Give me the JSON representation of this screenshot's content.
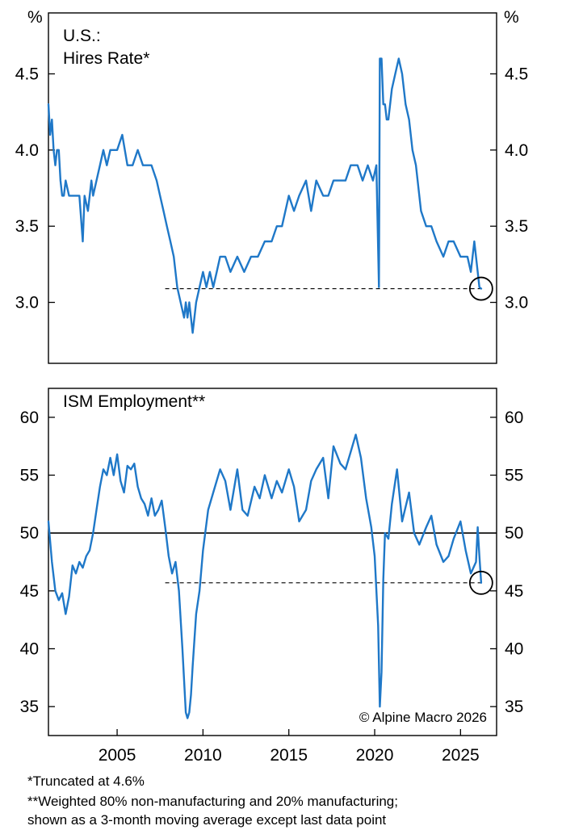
{
  "chart_data": [
    {
      "type": "line",
      "title": "U.S.:",
      "subtitle": "Hires Rate*",
      "unit_label": "%",
      "ylim": [
        2.6,
        4.9
      ],
      "yticks": [
        3.0,
        3.5,
        4.0,
        4.5
      ],
      "ytick_labels": [
        "3.0",
        "3.5",
        "4.0",
        "4.5"
      ],
      "xlim": [
        2001.0,
        2027.1
      ],
      "reference_line": {
        "value": 3.09,
        "from": 2007.8,
        "to": 2026.4,
        "style": "dashed"
      },
      "highlight_point": {
        "x": 2026.2,
        "y": 3.09,
        "marker": "circle"
      },
      "series": [
        {
          "color": "#1f78c8",
          "x": [
            2001.0,
            2001.1,
            2001.2,
            2001.3,
            2001.4,
            2001.5,
            2001.6,
            2001.7,
            2001.8,
            2001.9,
            2002.0,
            2002.2,
            2002.4,
            2002.6,
            2002.8,
            2003.0,
            2003.1,
            2003.3,
            2003.5,
            2003.6,
            2003.8,
            2004.0,
            2004.2,
            2004.4,
            2004.6,
            2004.8,
            2005.0,
            2005.3,
            2005.6,
            2005.9,
            2006.2,
            2006.5,
            2006.8,
            2007.0,
            2007.3,
            2007.5,
            2007.7,
            2007.9,
            2008.1,
            2008.3,
            2008.5,
            2008.7,
            2008.9,
            2009.0,
            2009.1,
            2009.2,
            2009.4,
            2009.6,
            2009.8,
            2010.0,
            2010.2,
            2010.4,
            2010.6,
            2010.8,
            2011.0,
            2011.3,
            2011.6,
            2012.0,
            2012.4,
            2012.8,
            2013.2,
            2013.6,
            2014.0,
            2014.3,
            2014.6,
            2015.0,
            2015.3,
            2015.6,
            2016.0,
            2016.3,
            2016.6,
            2017.0,
            2017.3,
            2017.6,
            2018.0,
            2018.3,
            2018.6,
            2019.0,
            2019.3,
            2019.6,
            2019.9,
            2020.1,
            2020.25,
            2020.3,
            2020.4,
            2020.5,
            2020.6,
            2020.7,
            2020.8,
            2021.0,
            2021.2,
            2021.4,
            2021.6,
            2021.8,
            2022.0,
            2022.2,
            2022.4,
            2022.7,
            2023.0,
            2023.3,
            2023.6,
            2024.0,
            2024.3,
            2024.6,
            2025.0,
            2025.2,
            2025.4,
            2025.6,
            2025.8,
            2026.0,
            2026.1,
            2026.2
          ],
          "values": [
            4.3,
            4.1,
            4.2,
            4.0,
            3.9,
            4.0,
            4.0,
            3.8,
            3.7,
            3.7,
            3.8,
            3.7,
            3.7,
            3.7,
            3.7,
            3.4,
            3.7,
            3.6,
            3.8,
            3.7,
            3.8,
            3.9,
            4.0,
            3.9,
            4.0,
            4.0,
            4.0,
            4.1,
            3.9,
            3.9,
            4.0,
            3.9,
            3.9,
            3.9,
            3.8,
            3.7,
            3.6,
            3.5,
            3.4,
            3.3,
            3.1,
            3.0,
            2.9,
            3.0,
            2.9,
            3.0,
            2.8,
            3.0,
            3.1,
            3.2,
            3.1,
            3.2,
            3.1,
            3.2,
            3.3,
            3.3,
            3.2,
            3.3,
            3.2,
            3.3,
            3.3,
            3.4,
            3.4,
            3.5,
            3.5,
            3.7,
            3.6,
            3.7,
            3.8,
            3.6,
            3.8,
            3.7,
            3.7,
            3.8,
            3.8,
            3.8,
            3.9,
            3.9,
            3.8,
            3.9,
            3.8,
            3.9,
            3.1,
            4.6,
            4.6,
            4.3,
            4.3,
            4.2,
            4.2,
            4.4,
            4.5,
            4.6,
            4.5,
            4.3,
            4.2,
            4.0,
            3.9,
            3.6,
            3.5,
            3.5,
            3.4,
            3.3,
            3.4,
            3.4,
            3.3,
            3.3,
            3.3,
            3.2,
            3.4,
            3.2,
            3.1,
            3.09
          ]
        }
      ]
    },
    {
      "type": "line",
      "title": "ISM Employment**",
      "ylim": [
        32.5,
        62.5
      ],
      "yticks": [
        35,
        40,
        45,
        50,
        55,
        60
      ],
      "ytick_labels": [
        "35",
        "40",
        "45",
        "50",
        "55",
        "60"
      ],
      "xlim": [
        2001.0,
        2027.1
      ],
      "xticks": [
        2005,
        2010,
        2015,
        2020,
        2025
      ],
      "xtick_labels": [
        "2005",
        "2010",
        "2015",
        "2020",
        "2025"
      ],
      "baseline": 50,
      "reference_line": {
        "value": 45.7,
        "from": 2007.8,
        "to": 2026.4,
        "style": "dashed"
      },
      "highlight_point": {
        "x": 2026.2,
        "y": 45.7,
        "marker": "circle"
      },
      "series": [
        {
          "color": "#1f78c8",
          "x": [
            2001.0,
            2001.2,
            2001.4,
            2001.6,
            2001.8,
            2002.0,
            2002.2,
            2002.4,
            2002.6,
            2002.8,
            2003.0,
            2003.2,
            2003.4,
            2003.6,
            2003.8,
            2004.0,
            2004.2,
            2004.4,
            2004.6,
            2004.8,
            2005.0,
            2005.2,
            2005.4,
            2005.6,
            2005.8,
            2006.0,
            2006.2,
            2006.4,
            2006.6,
            2006.8,
            2007.0,
            2007.2,
            2007.4,
            2007.6,
            2007.8,
            2008.0,
            2008.2,
            2008.4,
            2008.6,
            2008.8,
            2009.0,
            2009.1,
            2009.2,
            2009.3,
            2009.4,
            2009.6,
            2009.8,
            2010.0,
            2010.3,
            2010.6,
            2011.0,
            2011.3,
            2011.6,
            2012.0,
            2012.3,
            2012.6,
            2013.0,
            2013.3,
            2013.6,
            2014.0,
            2014.3,
            2014.6,
            2015.0,
            2015.3,
            2015.6,
            2016.0,
            2016.3,
            2016.6,
            2017.0,
            2017.3,
            2017.6,
            2018.0,
            2018.3,
            2018.6,
            2018.9,
            2019.2,
            2019.5,
            2019.8,
            2020.0,
            2020.2,
            2020.3,
            2020.4,
            2020.5,
            2020.6,
            2020.8,
            2021.0,
            2021.3,
            2021.6,
            2022.0,
            2022.3,
            2022.6,
            2023.0,
            2023.3,
            2023.6,
            2024.0,
            2024.3,
            2024.6,
            2025.0,
            2025.3,
            2025.6,
            2025.9,
            2026.0,
            2026.1,
            2026.2
          ],
          "values": [
            51,
            47.5,
            45,
            44.2,
            44.8,
            43.0,
            44.5,
            47.2,
            46.5,
            47.5,
            47.0,
            48.0,
            48.5,
            50.0,
            52.0,
            54.0,
            55.5,
            55.0,
            56.5,
            55.0,
            56.8,
            54.5,
            53.5,
            55.8,
            55.5,
            56.0,
            54.0,
            53.0,
            52.5,
            51.5,
            53.0,
            51.5,
            52.0,
            52.8,
            50.5,
            48.0,
            46.5,
            47.5,
            45.0,
            40.0,
            34.5,
            34.0,
            34.5,
            36.0,
            38.5,
            43.0,
            45.0,
            48.5,
            52.0,
            53.5,
            55.5,
            54.5,
            52.0,
            55.5,
            52.0,
            51.5,
            54.0,
            53.0,
            55.0,
            53.0,
            54.5,
            53.5,
            55.5,
            54.0,
            51.0,
            52.0,
            54.5,
            55.5,
            56.5,
            53.0,
            57.5,
            56.0,
            55.5,
            57.0,
            58.5,
            56.5,
            53.0,
            50.5,
            48.0,
            42.0,
            35.0,
            38.0,
            46.0,
            50.0,
            49.5,
            52.5,
            55.5,
            51.0,
            53.5,
            50.0,
            49.0,
            50.5,
            51.5,
            49.0,
            47.5,
            48.0,
            49.5,
            51.0,
            48.5,
            46.5,
            47.5,
            50.5,
            48.0,
            45.7
          ]
        }
      ]
    }
  ],
  "copyright": "© Alpine Macro 2026",
  "footnotes": [
    "*Truncated at 4.6%",
    "**Weighted 80% non-manufacturing and 20% manufacturing;",
    "shown as a 3-month moving average except last data point"
  ]
}
